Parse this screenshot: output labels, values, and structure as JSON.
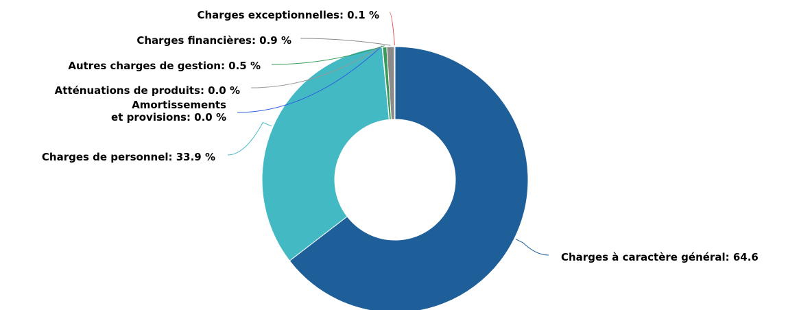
{
  "chart_data": {
    "type": "pie",
    "variant": "donut",
    "slices": [
      {
        "label": "Charges à caractère général: 64.6",
        "value": 64.6,
        "color": "#1f5f99"
      },
      {
        "label": "Charges de personnel: 33.9 %",
        "value": 33.9,
        "color": "#43b9c3"
      },
      {
        "label": "Amortissements et provisions: 0.0 %",
        "label_lines": [
          "Amortissements",
          "et provisions: 0.0 %"
        ],
        "value": 0.0,
        "color": "#2f5fe0"
      },
      {
        "label": "Atténuations de produits: 0.0 %",
        "value": 0.0,
        "color": "#999999"
      },
      {
        "label": "Autres charges de gestion: 0.5 %",
        "value": 0.5,
        "color": "#3a9a5a"
      },
      {
        "label": "Charges financières: 0.9 %",
        "value": 0.9,
        "color": "#8a8a8a"
      },
      {
        "label": "Charges exceptionnelles: 0.1 %",
        "value": 0.1,
        "color": "#e05050"
      }
    ]
  }
}
